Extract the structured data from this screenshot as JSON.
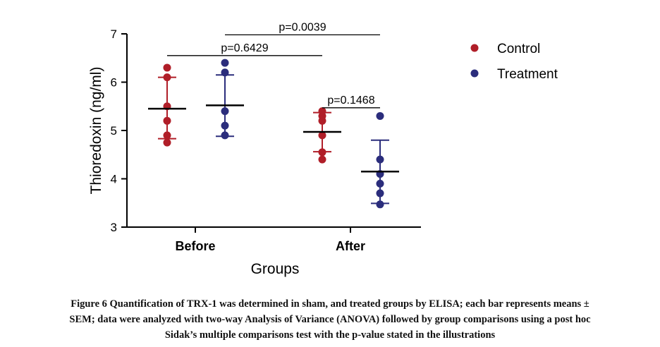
{
  "chart_data": {
    "type": "scatter",
    "title": "",
    "xlabel": "Groups",
    "ylabel": "Thioredoxin (ng/ml)",
    "categories": [
      "Before",
      "After"
    ],
    "ylim": [
      3,
      7
    ],
    "yticks": [
      3,
      4,
      5,
      6,
      7
    ],
    "grid": false,
    "legend_position": "top-right",
    "series": [
      {
        "name": "Control",
        "color": "#b01e28",
        "points": [
          [
            6.3,
            6.1,
            5.5,
            5.2,
            4.9,
            4.75
          ],
          [
            5.4,
            5.3,
            5.2,
            4.9,
            4.55,
            4.4
          ]
        ],
        "mean": [
          5.45,
          4.97
        ],
        "error_low": [
          4.83,
          4.56
        ],
        "error_high": [
          6.1,
          5.37
        ]
      },
      {
        "name": "Treatment",
        "color": "#2b2d7c",
        "points": [
          [
            6.4,
            6.2,
            5.4,
            5.1,
            4.9
          ],
          [
            5.3,
            4.4,
            4.1,
            3.9,
            3.7,
            3.47
          ]
        ],
        "mean": [
          5.52,
          4.15
        ],
        "error_low": [
          4.88,
          3.49
        ],
        "error_high": [
          6.15,
          4.8
        ]
      }
    ],
    "annotations": [
      {
        "label": "p=0.6429",
        "from": [
          "Before",
          "Control"
        ],
        "to": [
          "After",
          "Control"
        ],
        "y": 6.55
      },
      {
        "label": "p=0.0039",
        "from": [
          "Before",
          "Treatment"
        ],
        "to": [
          "After",
          "Treatment"
        ],
        "y": 6.98
      },
      {
        "label": "p=0.1468",
        "from": [
          "After",
          "Control"
        ],
        "to": [
          "After",
          "Treatment"
        ],
        "y": 5.47
      }
    ]
  },
  "caption": {
    "line1": "Figure 6 Quantification of TRX-1 was determined in sham, and treated groups by ELISA; each bar represents means ±",
    "line2": "SEM; data were analyzed with two-way Analysis of Variance (ANOVA) followed by group comparisons using a post hoc",
    "line3": "Sidak’s multiple comparisons test with the p-value stated in the illustrations"
  }
}
